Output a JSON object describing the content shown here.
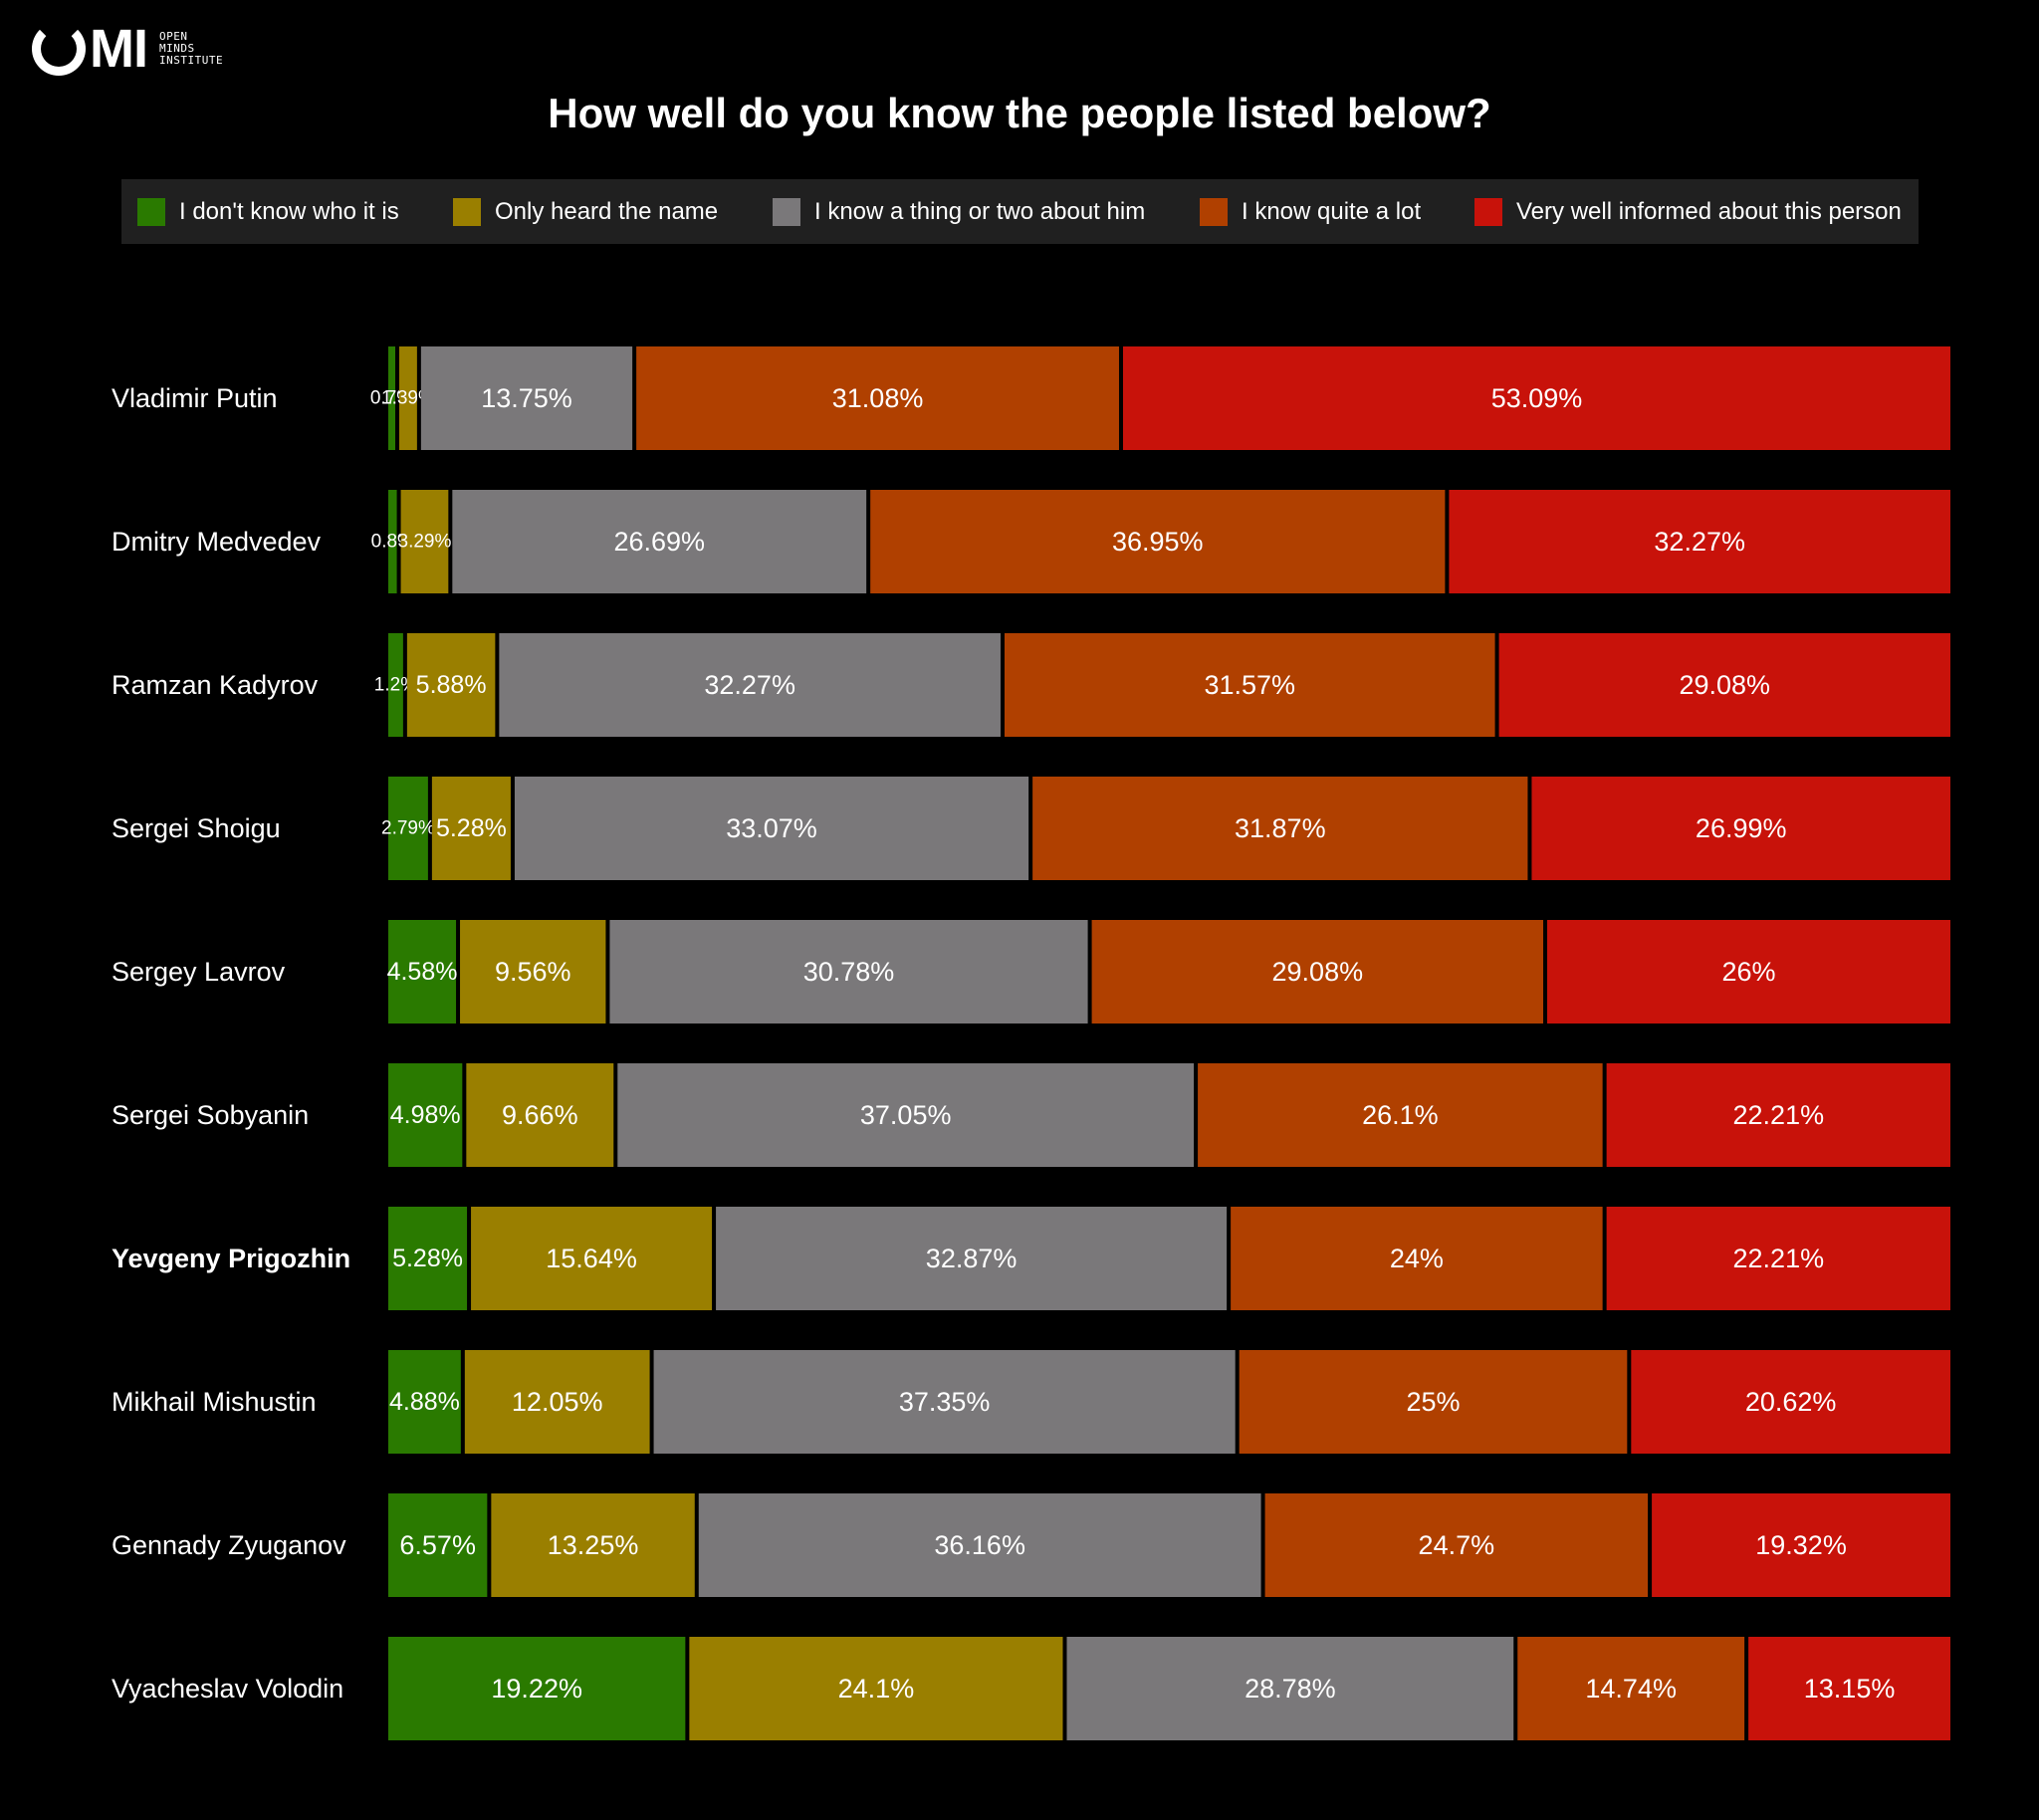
{
  "logo": {
    "mark": "MI",
    "text_lines": [
      "OPEN",
      "MINDS",
      "INSTITUTE"
    ]
  },
  "chart_data": {
    "type": "bar",
    "orientation": "horizontal",
    "stacked": true,
    "title": "How well do you know the people listed below?",
    "categories": [
      "Vladimir Putin",
      "Dmitry Medvedev",
      "Ramzan Kadyrov",
      "Sergei Shoigu",
      "Sergey Lavrov",
      "Sergei Sobyanin",
      "Yevgeny Prigozhin",
      "Mikhail Mishustin",
      "Gennady Zyuganov",
      "Vyacheslav Volodin"
    ],
    "highlighted_category": "Yevgeny Prigozhin",
    "series": [
      {
        "name": "I don't know who it is",
        "color": "#2a7a00",
        "values": [
          0.7,
          0.8,
          1.2,
          2.79,
          4.58,
          4.98,
          5.28,
          4.88,
          6.57,
          19.22
        ],
        "labels": [
          "0.7%",
          "0.8%",
          "1.2%",
          "2.79%",
          "4.58%",
          "4.98%",
          "5.28%",
          "4.88%",
          "6.57%",
          "19.22%"
        ]
      },
      {
        "name": "Only heard the name",
        "color": "#9a7f00",
        "values": [
          1.39,
          3.29,
          5.88,
          5.28,
          9.56,
          9.66,
          15.64,
          12.05,
          13.25,
          24.1
        ],
        "labels": [
          "1.39%",
          "3.29%",
          "5.88%",
          "5.28%",
          "9.56%",
          "9.66%",
          "15.64%",
          "12.05%",
          "13.25%",
          "24.1%"
        ]
      },
      {
        "name": "I know a thing or two about him",
        "color": "#7a787a",
        "values": [
          13.75,
          26.69,
          32.27,
          33.07,
          30.78,
          37.05,
          32.87,
          37.35,
          36.16,
          28.78
        ],
        "labels": [
          "13.75%",
          "26.69%",
          "32.27%",
          "33.07%",
          "30.78%",
          "37.05%",
          "32.87%",
          "37.35%",
          "36.16%",
          "28.78%"
        ]
      },
      {
        "name": "I know quite a lot",
        "color": "#b04000",
        "values": [
          31.08,
          36.95,
          31.57,
          31.87,
          29.08,
          26.1,
          24,
          25,
          24.7,
          14.74
        ],
        "labels": [
          "31.08%",
          "36.95%",
          "31.57%",
          "31.87%",
          "29.08%",
          "26.1%",
          "24%",
          "25%",
          "24.7%",
          "14.74%"
        ]
      },
      {
        "name": "Very well informed about this person",
        "color": "#c8120a",
        "values": [
          53.09,
          32.27,
          29.08,
          26.99,
          26,
          22.21,
          22.21,
          20.62,
          19.32,
          13.15
        ],
        "labels": [
          "53.09%",
          "32.27%",
          "29.08%",
          "26.99%",
          "26%",
          "22.21%",
          "22.21%",
          "20.62%",
          "19.32%",
          "13.15%"
        ]
      }
    ],
    "xlabel": "",
    "ylabel": "",
    "legend_position": "top",
    "grid": false
  }
}
